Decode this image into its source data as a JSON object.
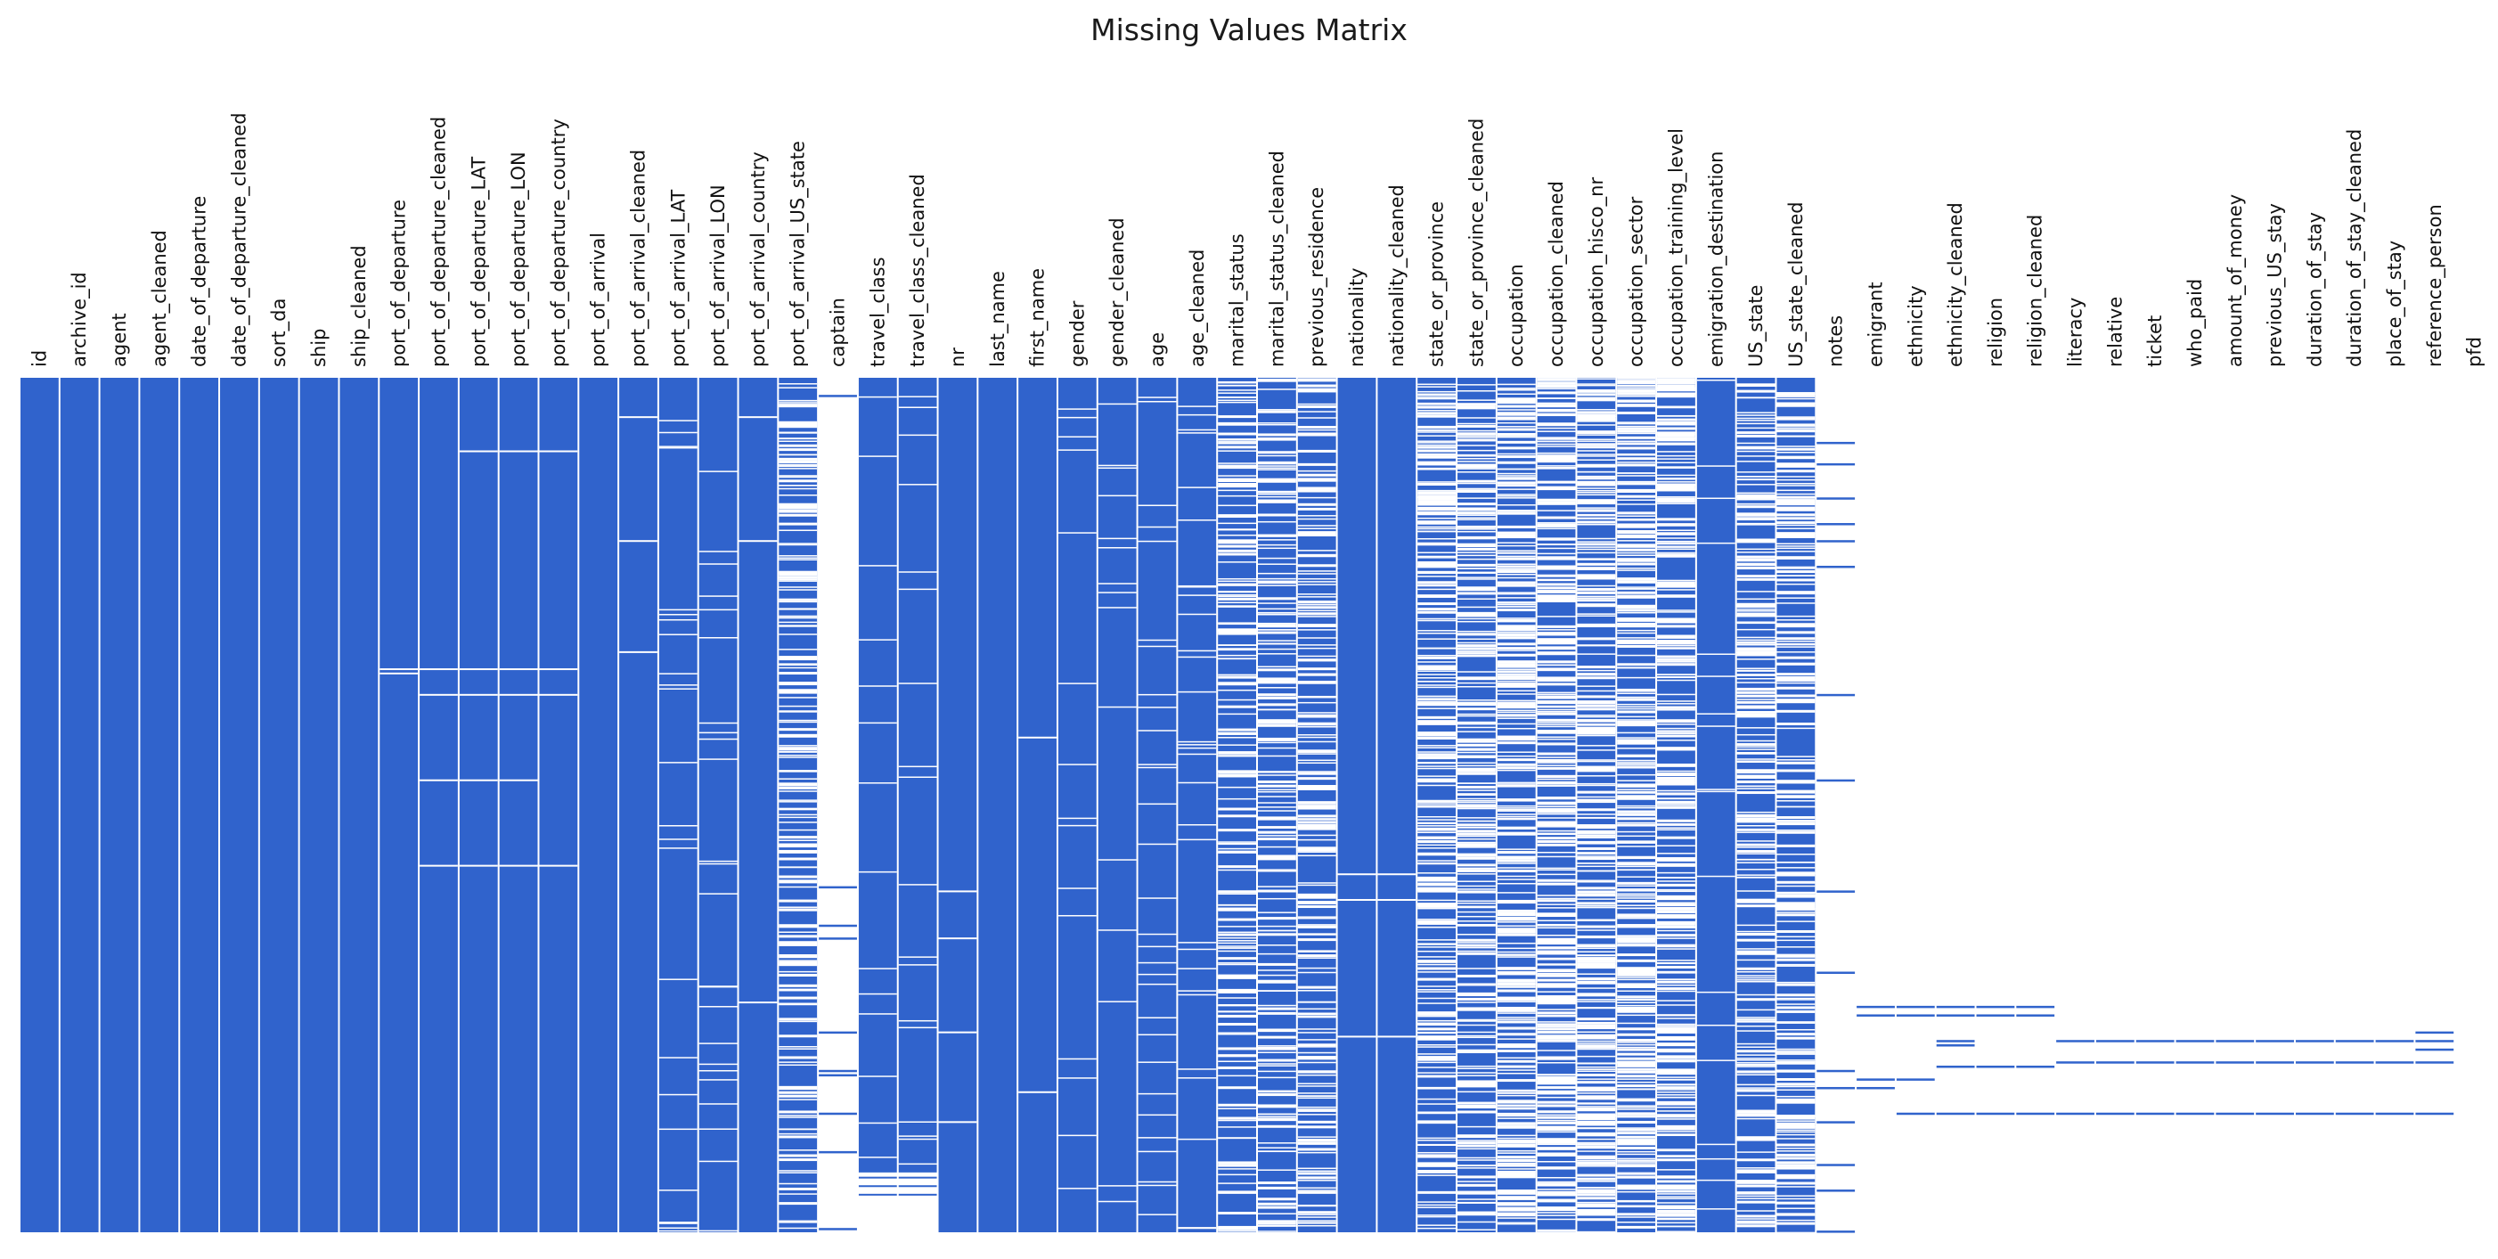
{
  "chart_data": {
    "type": "heatmap",
    "title": "Missing Values Matrix",
    "xlabel": "",
    "ylabel": "",
    "grid": false,
    "legend": "none",
    "colors": {
      "present": "#3063cc",
      "missing": "#ffffff"
    },
    "row_range": [
      0,
      1
    ],
    "columns": [
      {
        "name": "id",
        "pattern": "full"
      },
      {
        "name": "archive_id",
        "pattern": "full"
      },
      {
        "name": "agent",
        "pattern": "full"
      },
      {
        "name": "agent_cleaned",
        "pattern": "full"
      },
      {
        "name": "date_of_departure",
        "pattern": "full"
      },
      {
        "name": "date_of_departure_cleaned",
        "pattern": "full"
      },
      {
        "name": "sort_da",
        "pattern": "full"
      },
      {
        "name": "ship",
        "pattern": "full"
      },
      {
        "name": "ship_cleaned",
        "pattern": "full"
      },
      {
        "name": "port_of_departure",
        "pattern": "few",
        "gaps": [
          0.34,
          0.345
        ]
      },
      {
        "name": "port_of_departure_cleaned",
        "pattern": "few",
        "gaps": [
          0.34,
          0.37,
          0.47,
          0.57
        ]
      },
      {
        "name": "port_of_departure_LAT",
        "pattern": "few",
        "gaps": [
          0.085,
          0.34,
          0.37,
          0.47,
          0.57
        ]
      },
      {
        "name": "port_of_departure_LON",
        "pattern": "few",
        "gaps": [
          0.085,
          0.34,
          0.37,
          0.47,
          0.57
        ]
      },
      {
        "name": "port_of_departure_country",
        "pattern": "few",
        "gaps": [
          0.085,
          0.34,
          0.37,
          0.57
        ]
      },
      {
        "name": "port_of_arrival",
        "pattern": "full"
      },
      {
        "name": "port_of_arrival_cleaned",
        "pattern": "few",
        "gaps": [
          0.045,
          0.19,
          0.32
        ]
      },
      {
        "name": "port_of_arrival_LAT",
        "pattern": "lines",
        "density": 0.04
      },
      {
        "name": "port_of_arrival_LON",
        "pattern": "lines",
        "density": 0.04
      },
      {
        "name": "port_of_arrival_country",
        "pattern": "few",
        "gaps": [
          0.045,
          0.19,
          0.73
        ]
      },
      {
        "name": "port_of_arrival_US_state",
        "pattern": "heavy",
        "density": 0.35
      },
      {
        "name": "captain",
        "pattern": "sparse",
        "marks": [
          0.02,
          0.595,
          0.64,
          0.655,
          0.765,
          0.81,
          0.815,
          0.86,
          0.905,
          0.995
        ]
      },
      {
        "name": "travel_class",
        "pattern": "lines",
        "density": 0.03,
        "empty_from": 0.93
      },
      {
        "name": "travel_class_cleaned",
        "pattern": "lines",
        "density": 0.03,
        "empty_from": 0.93
      },
      {
        "name": "nr",
        "pattern": "few",
        "gaps": [
          0.6,
          0.655,
          0.765,
          0.87
        ]
      },
      {
        "name": "last_name",
        "pattern": "full"
      },
      {
        "name": "first_name",
        "pattern": "few",
        "gaps": [
          0.42,
          0.835
        ]
      },
      {
        "name": "gender",
        "pattern": "lines",
        "density": 0.025
      },
      {
        "name": "gender_cleaned",
        "pattern": "lines",
        "density": 0.025
      },
      {
        "name": "age",
        "pattern": "lines",
        "density": 0.05
      },
      {
        "name": "age_cleaned",
        "pattern": "lines",
        "density": 0.05
      },
      {
        "name": "marital_status",
        "pattern": "heavy",
        "density": 0.3
      },
      {
        "name": "marital_status_cleaned",
        "pattern": "heavy",
        "density": 0.3
      },
      {
        "name": "previous_residence",
        "pattern": "heavy",
        "density": 0.35
      },
      {
        "name": "nationality",
        "pattern": "few",
        "gaps": [
          0.58,
          0.61,
          0.77
        ]
      },
      {
        "name": "nationality_cleaned",
        "pattern": "few",
        "gaps": [
          0.58,
          0.61,
          0.77
        ]
      },
      {
        "name": "state_or_province",
        "pattern": "heavy",
        "density": 0.45
      },
      {
        "name": "state_or_province_cleaned",
        "pattern": "heavy",
        "density": 0.45
      },
      {
        "name": "occupation",
        "pattern": "heavy",
        "density": 0.55
      },
      {
        "name": "occupation_cleaned",
        "pattern": "heavy",
        "density": 0.55
      },
      {
        "name": "occupation_hisco_nr",
        "pattern": "heavy",
        "density": 0.55
      },
      {
        "name": "occupation_sector",
        "pattern": "heavy",
        "density": 0.55
      },
      {
        "name": "occupation_training_level",
        "pattern": "heavy",
        "density": 0.55
      },
      {
        "name": "emigration_destination",
        "pattern": "lines",
        "density": 0.03
      },
      {
        "name": "US_state",
        "pattern": "heavy",
        "density": 0.4
      },
      {
        "name": "US_state_cleaned",
        "pattern": "heavy",
        "density": 0.4
      },
      {
        "name": "notes",
        "pattern": "sparse",
        "marks": [
          0.075,
          0.1,
          0.14,
          0.17,
          0.19,
          0.22,
          0.37,
          0.47,
          0.6,
          0.695,
          0.81,
          0.83,
          0.87,
          0.92,
          0.95,
          0.998
        ]
      },
      {
        "name": "emigrant",
        "pattern": "sparse",
        "marks": [
          0.735,
          0.745,
          0.82,
          0.83
        ]
      },
      {
        "name": "ethnicity",
        "pattern": "sparse",
        "marks": [
          0.735,
          0.745,
          0.82,
          0.86
        ]
      },
      {
        "name": "ethnicity_cleaned",
        "pattern": "sparse",
        "marks": [
          0.735,
          0.745,
          0.775,
          0.78,
          0.805,
          0.86
        ]
      },
      {
        "name": "religion",
        "pattern": "sparse",
        "marks": [
          0.735,
          0.745,
          0.805,
          0.86
        ]
      },
      {
        "name": "religion_cleaned",
        "pattern": "sparse",
        "marks": [
          0.735,
          0.745,
          0.805,
          0.86
        ]
      },
      {
        "name": "literacy",
        "pattern": "sparse",
        "marks": [
          0.775,
          0.8,
          0.86
        ]
      },
      {
        "name": "relative",
        "pattern": "sparse",
        "marks": [
          0.775,
          0.8,
          0.86
        ]
      },
      {
        "name": "ticket",
        "pattern": "sparse",
        "marks": [
          0.775,
          0.8,
          0.86
        ]
      },
      {
        "name": "who_paid",
        "pattern": "sparse",
        "marks": [
          0.775,
          0.8,
          0.86
        ]
      },
      {
        "name": "amount_of_money",
        "pattern": "sparse",
        "marks": [
          0.775,
          0.8,
          0.86
        ]
      },
      {
        "name": "previous_US_stay",
        "pattern": "sparse",
        "marks": [
          0.775,
          0.8,
          0.86
        ]
      },
      {
        "name": "duration_of_stay",
        "pattern": "sparse",
        "marks": [
          0.775,
          0.8,
          0.86
        ]
      },
      {
        "name": "duration_of_stay_cleaned",
        "pattern": "sparse",
        "marks": [
          0.775,
          0.8,
          0.86
        ]
      },
      {
        "name": "place_of_stay",
        "pattern": "sparse",
        "marks": [
          0.775,
          0.8,
          0.86
        ]
      },
      {
        "name": "reference_person",
        "pattern": "sparse",
        "marks": [
          0.765,
          0.775,
          0.785,
          0.8,
          0.86
        ]
      },
      {
        "name": "pfd",
        "pattern": "empty"
      }
    ]
  }
}
